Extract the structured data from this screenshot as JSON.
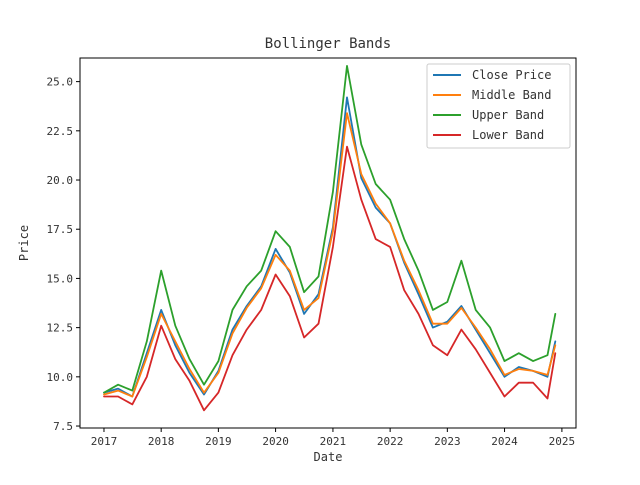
{
  "chart_data": {
    "type": "line",
    "title": "Bollinger Bands",
    "xlabel": "Date",
    "ylabel": "Price",
    "xlim": [
      "2016-08-01",
      "2025-04-01"
    ],
    "ylim": [
      7.4,
      26.2
    ],
    "x_ticks": [
      "2017",
      "2018",
      "2019",
      "2020",
      "2021",
      "2022",
      "2023",
      "2024",
      "2025"
    ],
    "y_ticks": [
      "7.5",
      "10.0",
      "12.5",
      "15.0",
      "17.5",
      "20.0",
      "22.5",
      "25.0"
    ],
    "grid": false,
    "legend_position": "top-right",
    "x": [
      "2017-01-01",
      "2017-04-01",
      "2017-07-01",
      "2017-10-01",
      "2018-01-01",
      "2018-04-01",
      "2018-07-01",
      "2018-10-01",
      "2019-01-01",
      "2019-04-01",
      "2019-07-01",
      "2019-10-01",
      "2020-01-01",
      "2020-04-01",
      "2020-07-01",
      "2020-10-01",
      "2021-01-01",
      "2021-04-01",
      "2021-07-01",
      "2021-10-01",
      "2022-01-01",
      "2022-04-01",
      "2022-07-01",
      "2022-10-01",
      "2023-01-01",
      "2023-04-01",
      "2023-07-01",
      "2023-10-01",
      "2024-01-01",
      "2024-04-01",
      "2024-07-01",
      "2024-10-01",
      "2024-11-20"
    ],
    "series": [
      {
        "name": "Close Price",
        "color": "#1f77b4",
        "values": [
          9.2,
          9.4,
          9.0,
          11.2,
          13.4,
          11.6,
          10.2,
          9.1,
          10.3,
          12.4,
          13.6,
          14.6,
          16.5,
          15.3,
          13.2,
          14.2,
          17.6,
          24.2,
          20.1,
          18.6,
          17.8,
          15.8,
          14.2,
          12.5,
          12.8,
          13.6,
          12.4,
          11.2,
          10.0,
          10.5,
          10.3,
          10.0,
          11.8
        ]
      },
      {
        "name": "Middle Band",
        "color": "#ff7f0e",
        "values": [
          9.1,
          9.3,
          9.0,
          11.0,
          13.2,
          11.8,
          10.4,
          9.2,
          10.2,
          12.2,
          13.5,
          14.5,
          16.2,
          15.4,
          13.4,
          14.0,
          17.4,
          23.4,
          20.3,
          18.8,
          17.8,
          15.9,
          14.4,
          12.7,
          12.7,
          13.5,
          12.5,
          11.4,
          10.1,
          10.4,
          10.3,
          10.1,
          11.6
        ]
      },
      {
        "name": "Upper Band",
        "color": "#2ca02c",
        "values": [
          9.2,
          9.6,
          9.3,
          11.8,
          15.4,
          12.6,
          10.9,
          9.6,
          10.8,
          13.4,
          14.6,
          15.4,
          17.4,
          16.6,
          14.3,
          15.1,
          19.4,
          25.8,
          21.8,
          19.8,
          19.0,
          17.0,
          15.4,
          13.4,
          13.8,
          15.9,
          13.4,
          12.5,
          10.8,
          11.2,
          10.8,
          11.1,
          13.2
        ]
      },
      {
        "name": "Lower Band",
        "color": "#d62728",
        "values": [
          9.0,
          9.0,
          8.6,
          10.0,
          12.6,
          10.9,
          9.8,
          8.3,
          9.2,
          11.1,
          12.4,
          13.4,
          15.2,
          14.1,
          12.0,
          12.7,
          16.6,
          21.7,
          19.0,
          17.0,
          16.6,
          14.4,
          13.2,
          11.6,
          11.1,
          12.4,
          11.4,
          10.2,
          9.0,
          9.7,
          9.7,
          8.9,
          11.2
        ]
      }
    ]
  }
}
